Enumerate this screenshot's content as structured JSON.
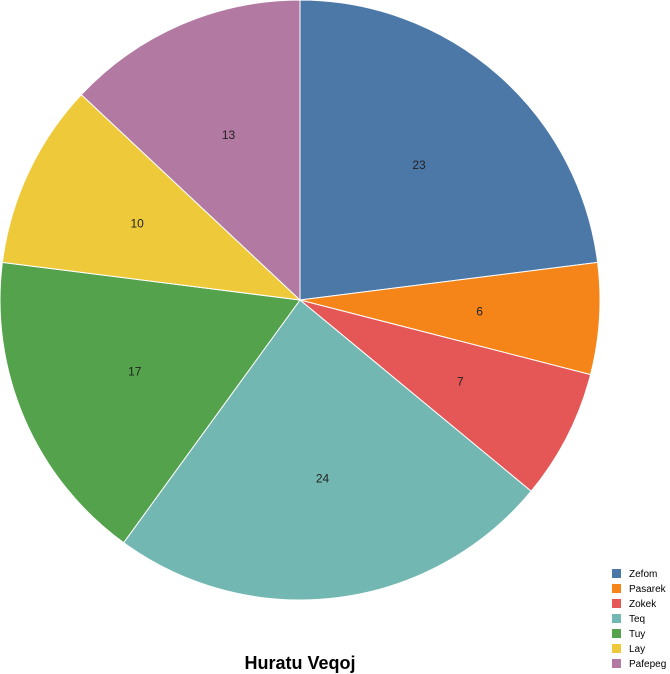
{
  "chart_data": {
    "type": "pie",
    "title": "Huratu Veqoj",
    "legend_position": "bottom-right",
    "categories": [
      "Zefom",
      "Pasarek",
      "Zokek",
      "Teq",
      "Tuy",
      "Lay",
      "Pafepeg"
    ],
    "values": [
      23,
      6,
      7,
      24,
      17,
      10,
      13
    ],
    "colors": [
      "#4c78a8",
      "#f58518",
      "#e45756",
      "#72b7b2",
      "#54a24b",
      "#eeca3b",
      "#b279a2"
    ]
  }
}
